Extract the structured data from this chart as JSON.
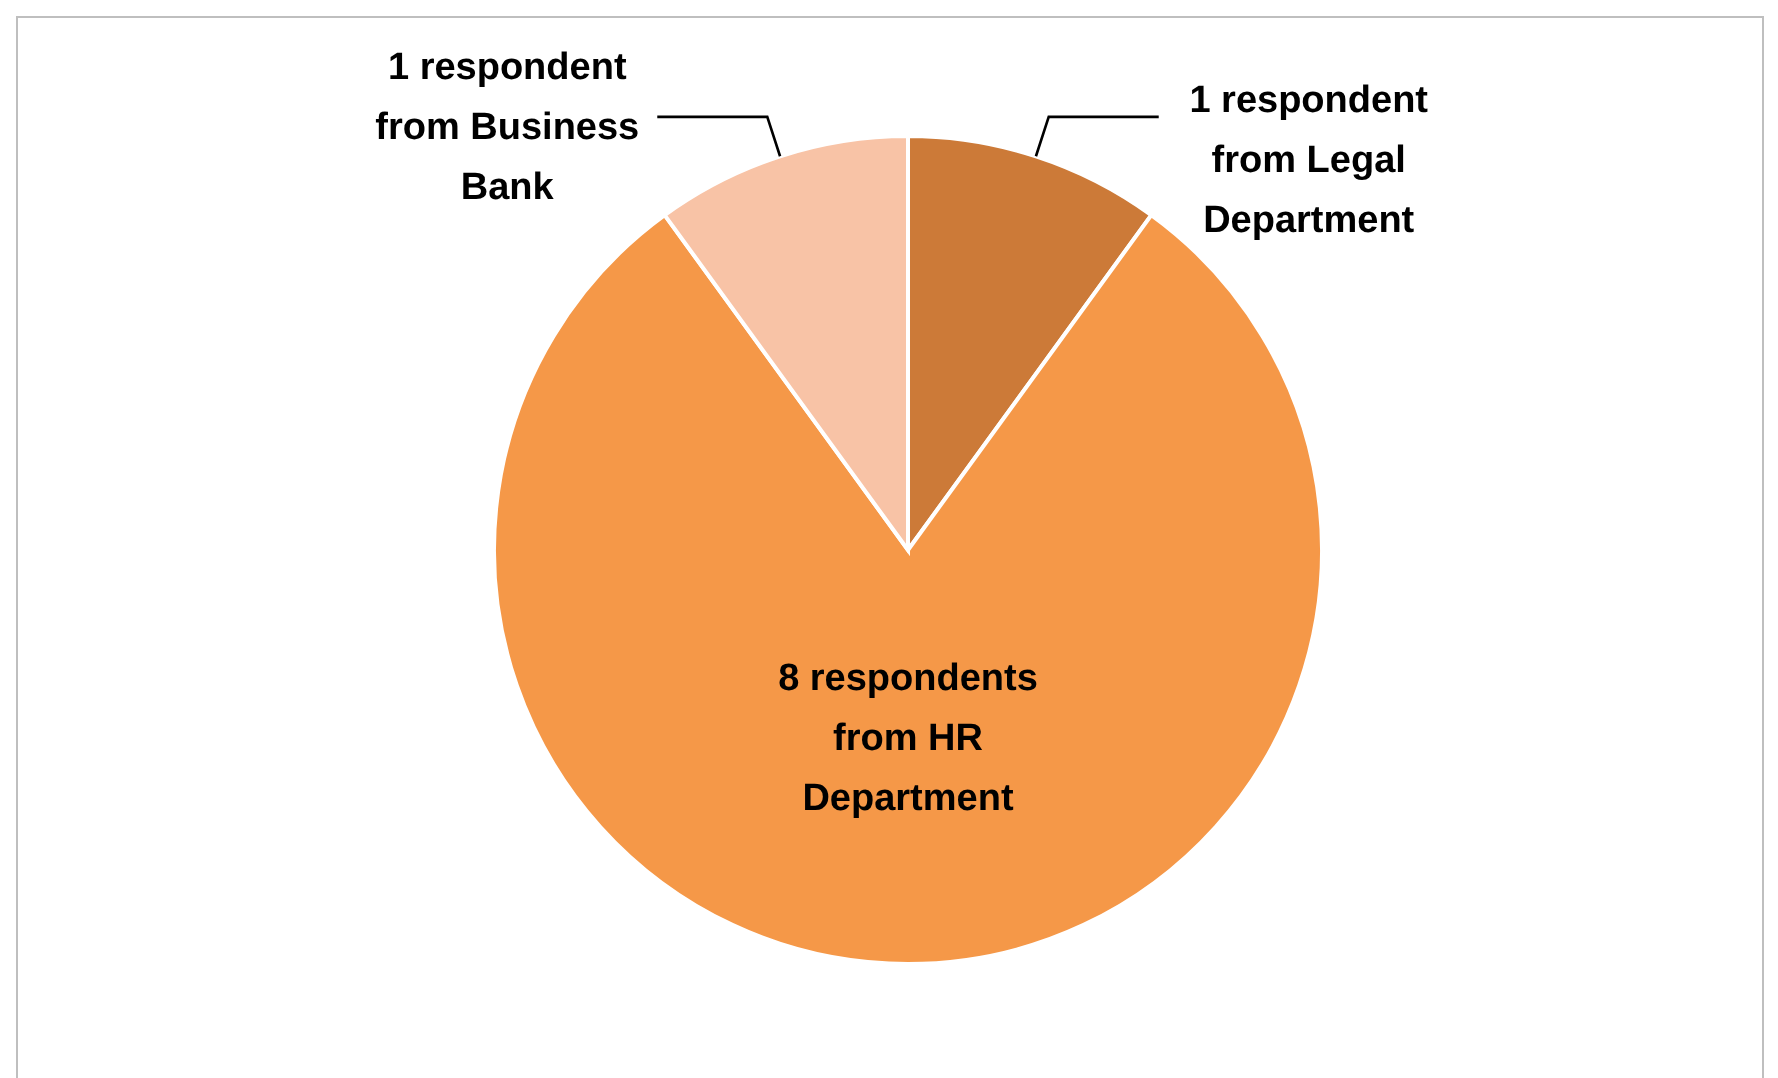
{
  "chart_data": {
    "type": "pie",
    "categories": [
      "1 respondent from Legal Department",
      "8 respondents from HR Department",
      "1 respondent from Business Bank"
    ],
    "values": [
      1,
      8,
      1
    ],
    "colors": [
      "#cc7a38",
      "#f59848",
      "#f8c3a6"
    ]
  }
}
